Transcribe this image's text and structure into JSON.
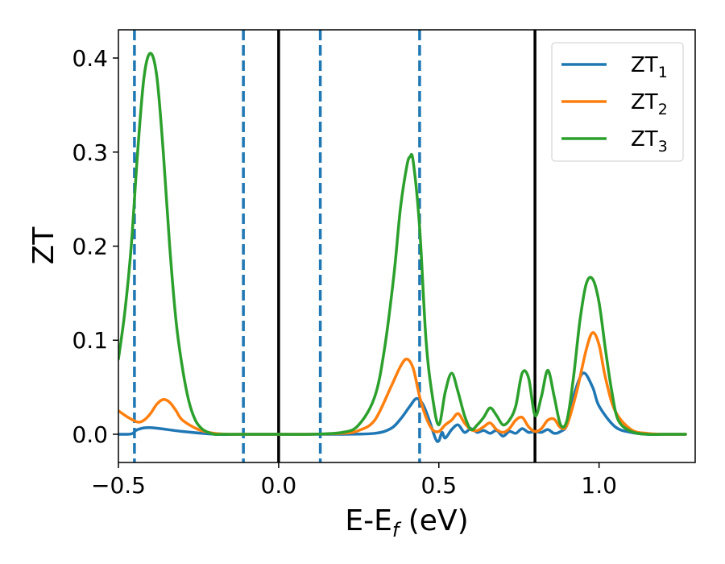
{
  "chart_data": {
    "type": "line",
    "title": "",
    "xlabel": "E-E",
    "xlabel_sub": "f",
    "xlabel_unit": " (eV)",
    "ylabel": "ZT",
    "xlim": [
      -0.5,
      1.3
    ],
    "ylim": [
      -0.03,
      0.43
    ],
    "xticks": [
      -0.5,
      0.0,
      0.5,
      1.0
    ],
    "xtick_labels": [
      "−0.5",
      "0.0",
      "0.5",
      "1.0"
    ],
    "yticks": [
      0.0,
      0.1,
      0.2,
      0.3,
      0.4
    ],
    "ytick_labels": [
      "0.0",
      "0.1",
      "0.2",
      "0.3",
      "0.4"
    ],
    "grid": false,
    "legend_position": "top-right",
    "vlines_solid": [
      0.0,
      0.8
    ],
    "vlines_dashed": [
      -0.45,
      -0.11,
      0.13,
      0.44
    ],
    "series": [
      {
        "name": "ZT",
        "name_sub": "1",
        "color": "#1f77b4",
        "x": [
          -0.5,
          -0.47,
          -0.455,
          -0.44,
          -0.4,
          -0.3,
          -0.2,
          -0.1,
          0.0,
          0.1,
          0.2,
          0.3,
          0.35,
          0.38,
          0.41,
          0.43,
          0.45,
          0.47,
          0.49,
          0.5,
          0.51,
          0.52,
          0.54,
          0.56,
          0.58,
          0.6,
          0.62,
          0.64,
          0.66,
          0.68,
          0.7,
          0.72,
          0.74,
          0.76,
          0.78,
          0.8,
          0.82,
          0.84,
          0.86,
          0.88,
          0.9,
          0.92,
          0.95,
          0.98,
          1.0,
          1.05,
          1.1,
          1.15,
          1.2,
          1.27
        ],
        "y": [
          0.0,
          0.0,
          0.001,
          0.005,
          0.007,
          0.003,
          0.0,
          0.0,
          0.0,
          0.0,
          0.0,
          0.001,
          0.006,
          0.016,
          0.03,
          0.038,
          0.032,
          0.015,
          -0.005,
          -0.007,
          0.002,
          -0.004,
          0.005,
          0.01,
          0.002,
          0.006,
          0.002,
          0.004,
          0.001,
          0.004,
          -0.002,
          0.003,
          0.001,
          0.006,
          0.002,
          0.003,
          0.002,
          0.005,
          0.001,
          0.003,
          0.01,
          0.04,
          0.065,
          0.05,
          0.03,
          0.008,
          0.002,
          0.0,
          0.0,
          0.0
        ]
      },
      {
        "name": "ZT",
        "name_sub": "2",
        "color": "#ff7f0e",
        "x": [
          -0.5,
          -0.47,
          -0.44,
          -0.42,
          -0.4,
          -0.38,
          -0.36,
          -0.34,
          -0.32,
          -0.3,
          -0.25,
          -0.2,
          -0.15,
          -0.1,
          0.0,
          0.1,
          0.2,
          0.25,
          0.3,
          0.35,
          0.38,
          0.4,
          0.42,
          0.44,
          0.46,
          0.48,
          0.5,
          0.52,
          0.54,
          0.56,
          0.58,
          0.6,
          0.62,
          0.64,
          0.66,
          0.68,
          0.7,
          0.72,
          0.74,
          0.76,
          0.78,
          0.8,
          0.82,
          0.84,
          0.86,
          0.88,
          0.9,
          0.93,
          0.96,
          0.98,
          1.0,
          1.02,
          1.05,
          1.1,
          1.15,
          1.2,
          1.27
        ],
        "y": [
          0.025,
          0.018,
          0.013,
          0.015,
          0.022,
          0.032,
          0.037,
          0.034,
          0.025,
          0.015,
          0.005,
          0.001,
          0.0,
          0.0,
          0.0,
          0.0,
          0.001,
          0.004,
          0.015,
          0.05,
          0.072,
          0.08,
          0.07,
          0.04,
          0.018,
          0.005,
          0.003,
          0.01,
          0.015,
          0.022,
          0.012,
          0.005,
          0.004,
          0.008,
          0.012,
          0.005,
          0.002,
          0.006,
          0.015,
          0.018,
          0.008,
          0.003,
          0.006,
          0.015,
          0.016,
          0.007,
          0.01,
          0.045,
          0.09,
          0.108,
          0.095,
          0.06,
          0.025,
          0.005,
          0.001,
          0.0,
          0.0
        ]
      },
      {
        "name": "ZT",
        "name_sub": "3",
        "color": "#2ca02c",
        "x": [
          -0.5,
          -0.48,
          -0.46,
          -0.44,
          -0.42,
          -0.4,
          -0.38,
          -0.36,
          -0.34,
          -0.32,
          -0.3,
          -0.28,
          -0.26,
          -0.24,
          -0.22,
          -0.2,
          -0.18,
          -0.15,
          -0.1,
          0.0,
          0.1,
          0.2,
          0.25,
          0.3,
          0.33,
          0.36,
          0.38,
          0.4,
          0.41,
          0.42,
          0.44,
          0.46,
          0.48,
          0.5,
          0.52,
          0.54,
          0.56,
          0.58,
          0.6,
          0.62,
          0.64,
          0.66,
          0.68,
          0.7,
          0.72,
          0.74,
          0.76,
          0.78,
          0.8,
          0.82,
          0.84,
          0.86,
          0.88,
          0.9,
          0.92,
          0.94,
          0.96,
          0.98,
          1.0,
          1.02,
          1.04,
          1.06,
          1.1,
          1.15,
          1.2,
          1.27
        ],
        "y": [
          0.08,
          0.13,
          0.2,
          0.3,
          0.38,
          0.405,
          0.38,
          0.3,
          0.2,
          0.12,
          0.07,
          0.035,
          0.015,
          0.006,
          0.002,
          0.0,
          0.0,
          0.0,
          0.0,
          0.0,
          0.0,
          0.002,
          0.01,
          0.04,
          0.09,
          0.17,
          0.24,
          0.285,
          0.295,
          0.29,
          0.22,
          0.1,
          0.04,
          0.01,
          0.045,
          0.065,
          0.045,
          0.02,
          0.005,
          0.01,
          0.018,
          0.028,
          0.02,
          0.01,
          0.015,
          0.03,
          0.065,
          0.06,
          0.02,
          0.04,
          0.068,
          0.04,
          0.01,
          0.015,
          0.06,
          0.12,
          0.16,
          0.165,
          0.14,
          0.09,
          0.045,
          0.015,
          0.003,
          0.0,
          0.0,
          0.0
        ]
      }
    ]
  }
}
